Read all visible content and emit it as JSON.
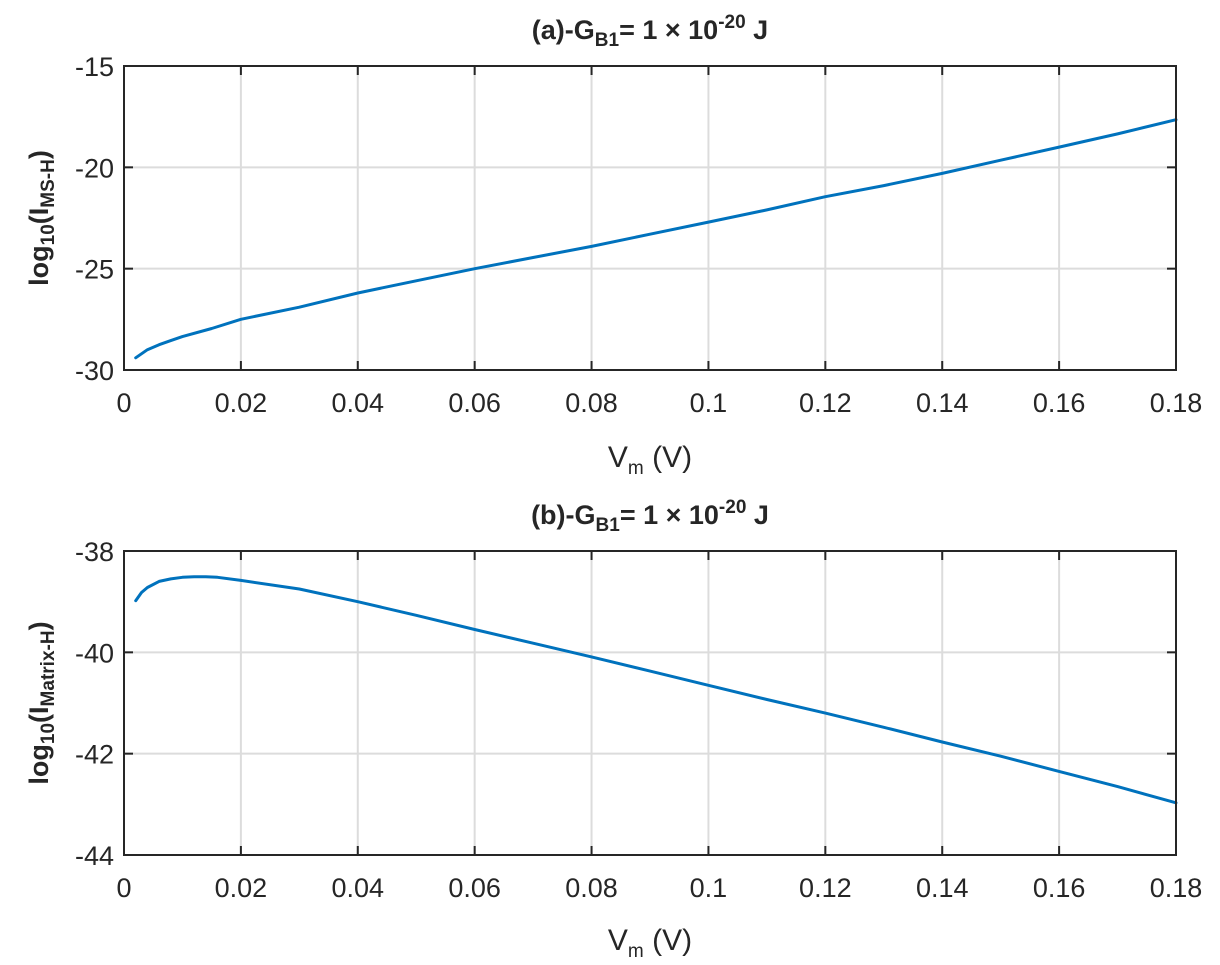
{
  "colors": {
    "series": "#0072BD",
    "axis": "#262626",
    "grid": "#dcdcdc"
  },
  "chart_data": [
    {
      "type": "line",
      "title": {
        "prefix": "(a)-G",
        "sub": "B1",
        "mid": "=  1 × ",
        "base": "10",
        "exp": "-20",
        "suffix": "  J"
      },
      "xlabel": {
        "main": "V",
        "sub": "m",
        "rest": "  (V)"
      },
      "ylabel": {
        "main": "log",
        "sub1": "10",
        "mid": "(I",
        "sub2": "MS-H",
        "end": ")"
      },
      "xlim": [
        0,
        0.18
      ],
      "ylim": [
        -30,
        -15
      ],
      "grid": true,
      "xticks": [
        0,
        0.02,
        0.04,
        0.06,
        0.08,
        0.1,
        0.12,
        0.14,
        0.16,
        0.18
      ],
      "xticklabels": [
        "0",
        "0.02",
        "0.04",
        "0.06",
        "0.08",
        "0.1",
        "0.12",
        "0.14",
        "0.16",
        "0.18"
      ],
      "yticks": [
        -30,
        -25,
        -20,
        -15
      ],
      "yticklabels": [
        "-30",
        "-25",
        "-20",
        "-15"
      ],
      "series": [
        {
          "x": [
            0.002,
            0.004,
            0.006,
            0.008,
            0.01,
            0.015,
            0.02,
            0.03,
            0.04,
            0.05,
            0.06,
            0.07,
            0.08,
            0.09,
            0.1,
            0.11,
            0.12,
            0.13,
            0.14,
            0.15,
            0.16,
            0.17,
            0.18
          ],
          "y": [
            -29.4,
            -29.0,
            -28.75,
            -28.55,
            -28.35,
            -27.95,
            -27.5,
            -26.9,
            -26.2,
            -25.6,
            -25.0,
            -24.45,
            -23.9,
            -23.3,
            -22.7,
            -22.1,
            -21.45,
            -20.9,
            -20.3,
            -19.65,
            -19.0,
            -18.35,
            -17.65
          ]
        }
      ]
    },
    {
      "type": "line",
      "title": {
        "prefix": "(b)-G",
        "sub": "B1",
        "mid": "=  1 × ",
        "base": "10",
        "exp": "-20",
        "suffix": "  J"
      },
      "xlabel": {
        "main": "V",
        "sub": "m",
        "rest": "  (V)"
      },
      "ylabel": {
        "main": "log",
        "sub1": "10",
        "mid": "(I",
        "sub2": "Matrix-H",
        "end": ")"
      },
      "xlim": [
        0,
        0.18
      ],
      "ylim": [
        -44,
        -38
      ],
      "grid": true,
      "xticks": [
        0,
        0.02,
        0.04,
        0.06,
        0.08,
        0.1,
        0.12,
        0.14,
        0.16,
        0.18
      ],
      "xticklabels": [
        "0",
        "0.02",
        "0.04",
        "0.06",
        "0.08",
        "0.1",
        "0.12",
        "0.14",
        "0.16",
        "0.18"
      ],
      "yticks": [
        -44,
        -42,
        -40,
        -38
      ],
      "yticklabels": [
        "-44",
        "-42",
        "-40",
        "-38"
      ],
      "series": [
        {
          "x": [
            0.002,
            0.003,
            0.004,
            0.006,
            0.008,
            0.01,
            0.012,
            0.014,
            0.016,
            0.02,
            0.03,
            0.04,
            0.05,
            0.06,
            0.07,
            0.08,
            0.09,
            0.1,
            0.11,
            0.12,
            0.13,
            0.14,
            0.15,
            0.16,
            0.17,
            0.18
          ],
          "y": [
            -38.98,
            -38.82,
            -38.72,
            -38.6,
            -38.55,
            -38.52,
            -38.51,
            -38.51,
            -38.52,
            -38.58,
            -38.75,
            -39.0,
            -39.27,
            -39.55,
            -39.82,
            -40.09,
            -40.37,
            -40.65,
            -40.93,
            -41.2,
            -41.48,
            -41.77,
            -42.05,
            -42.35,
            -42.65,
            -42.97
          ]
        }
      ]
    }
  ]
}
